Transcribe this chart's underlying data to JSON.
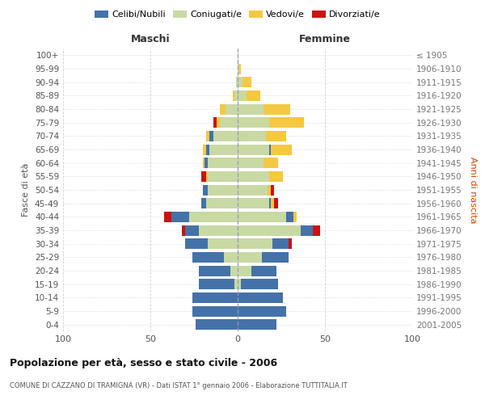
{
  "age_groups": [
    "0-4",
    "5-9",
    "10-14",
    "15-19",
    "20-24",
    "25-29",
    "30-34",
    "35-39",
    "40-44",
    "45-49",
    "50-54",
    "55-59",
    "60-64",
    "65-69",
    "70-74",
    "75-79",
    "80-84",
    "85-89",
    "90-94",
    "95-99",
    "100+"
  ],
  "birth_years": [
    "2001-2005",
    "1996-2000",
    "1991-1995",
    "1986-1990",
    "1981-1985",
    "1976-1980",
    "1971-1975",
    "1966-1970",
    "1961-1965",
    "1956-1960",
    "1951-1955",
    "1946-1950",
    "1941-1945",
    "1936-1940",
    "1931-1935",
    "1926-1930",
    "1921-1925",
    "1916-1920",
    "1911-1915",
    "1906-1910",
    "≤ 1905"
  ],
  "males": {
    "celibi": [
      24,
      26,
      26,
      20,
      18,
      18,
      13,
      8,
      10,
      3,
      3,
      0,
      2,
      2,
      2,
      0,
      0,
      0,
      0,
      0,
      0
    ],
    "coniugati": [
      0,
      0,
      0,
      2,
      4,
      8,
      17,
      22,
      28,
      18,
      17,
      17,
      17,
      16,
      14,
      10,
      7,
      2,
      1,
      0,
      0
    ],
    "vedovi": [
      0,
      0,
      0,
      0,
      0,
      0,
      0,
      0,
      0,
      0,
      0,
      1,
      1,
      2,
      2,
      2,
      3,
      1,
      0,
      0,
      0
    ],
    "divorziati": [
      0,
      0,
      0,
      0,
      0,
      0,
      0,
      2,
      4,
      0,
      0,
      3,
      0,
      0,
      0,
      2,
      0,
      0,
      0,
      0,
      0
    ]
  },
  "females": {
    "nubili": [
      22,
      28,
      26,
      21,
      14,
      15,
      9,
      7,
      4,
      1,
      0,
      0,
      0,
      1,
      0,
      0,
      0,
      0,
      0,
      0,
      0
    ],
    "coniugate": [
      0,
      0,
      0,
      2,
      8,
      14,
      20,
      36,
      28,
      18,
      17,
      18,
      15,
      18,
      16,
      18,
      15,
      5,
      3,
      1,
      0
    ],
    "vedove": [
      0,
      0,
      0,
      0,
      0,
      0,
      0,
      0,
      2,
      2,
      2,
      8,
      8,
      12,
      12,
      20,
      15,
      8,
      5,
      1,
      0
    ],
    "divorziate": [
      0,
      0,
      0,
      0,
      0,
      0,
      2,
      4,
      0,
      2,
      2,
      0,
      0,
      0,
      0,
      0,
      0,
      0,
      0,
      0,
      0
    ]
  },
  "colors": {
    "celibi": "#4472a8",
    "coniugati": "#c8d9a4",
    "vedovi": "#f5c842",
    "divorziati": "#cc1111"
  },
  "title": "Popolazione per età, sesso e stato civile - 2006",
  "subtitle": "COMUNE DI CAZZANO DI TRAMIGNA (VR) - Dati ISTAT 1° gennaio 2006 - Elaborazione TUTTITALIA.IT",
  "xlabel_left": "Maschi",
  "xlabel_right": "Femmine",
  "ylabel_left": "Fasce di età",
  "ylabel_right": "Anni di nascita",
  "legend_labels": [
    "Celibi/Nubili",
    "Coniugati/e",
    "Vedovi/e",
    "Divorziati/e"
  ],
  "xlim": 100,
  "background_color": "#ffffff",
  "grid_color": "#cccccc"
}
